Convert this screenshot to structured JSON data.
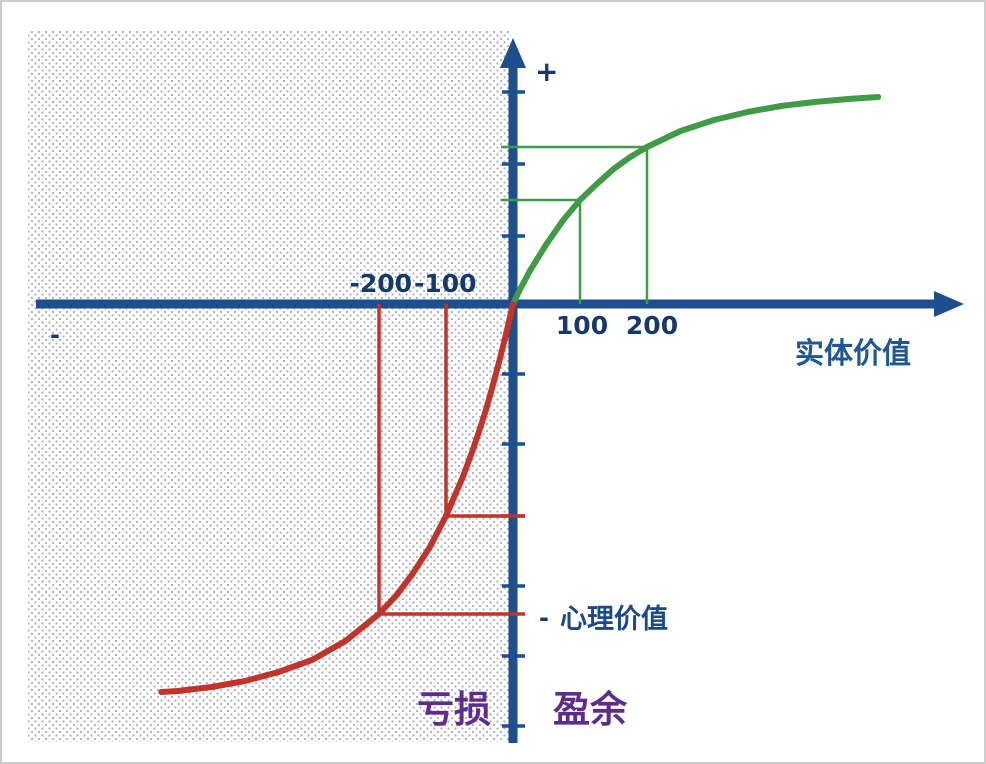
{
  "figure": {
    "plus_sign": "+",
    "minus_sign_left": "-",
    "y_axis_minus": "-",
    "x_axis_label": "实体价值",
    "y_axis_label": "心理价值",
    "loss_label": "亏损",
    "gain_label": "盈余"
  },
  "tick_labels": {
    "neg200": "-200",
    "neg100": "-100",
    "pos100": "100",
    "pos200": "200"
  },
  "colors": {
    "axis": "#1d4e8f",
    "tick_text": "#15386e",
    "gains": "#3f9b45",
    "losses": "#c2342a",
    "quadrant_text": "#5e2b8f",
    "x_label_text": "#1d5796",
    "dots": "#a9aeb7"
  },
  "chart_data": {
    "type": "line",
    "title": "",
    "xlabel": "实体价值",
    "ylabel": "心理价值",
    "x_tick_labels": [
      -200,
      -100,
      100,
      200
    ],
    "y_units": "arbitrary (axis unlabeled)",
    "quadrant_labels": {
      "losses": "亏损",
      "gains": "盈余"
    },
    "legend": "none",
    "grid": false,
    "series": [
      {
        "name": "gains-curve",
        "color": "#3f9b45",
        "points": [
          [
            0,
            0
          ],
          [
            10,
            14
          ],
          [
            25,
            33
          ],
          [
            50,
            60
          ],
          [
            75,
            84
          ],
          [
            100,
            104
          ],
          [
            125,
            120
          ],
          [
            150,
            135
          ],
          [
            175,
            147
          ],
          [
            200,
            157
          ],
          [
            250,
            173
          ],
          [
            300,
            184
          ],
          [
            350,
            192
          ],
          [
            400,
            198
          ],
          [
            450,
            202
          ],
          [
            500,
            205
          ],
          [
            545,
            207
          ]
        ]
      },
      {
        "name": "losses-curve",
        "color": "#c2342a",
        "points": [
          [
            0,
            0
          ],
          [
            -10,
            -29
          ],
          [
            -20,
            -56
          ],
          [
            -30,
            -81
          ],
          [
            -40,
            -105
          ],
          [
            -50,
            -126
          ],
          [
            -60,
            -146
          ],
          [
            -75,
            -173
          ],
          [
            -100,
            -212
          ],
          [
            -125,
            -244
          ],
          [
            -150,
            -270
          ],
          [
            -175,
            -292
          ],
          [
            -200,
            -310
          ],
          [
            -250,
            -337
          ],
          [
            -300,
            -356
          ],
          [
            -350,
            -368
          ],
          [
            -400,
            -377
          ],
          [
            -450,
            -383
          ],
          [
            -500,
            -387
          ],
          [
            -525,
            -388
          ]
        ]
      }
    ],
    "reference_lines": {
      "gains_x": [
        100,
        200
      ],
      "losses_x": [
        -100,
        -200
      ]
    },
    "y_ticks": [
      212,
      140,
      68,
      -70,
      -140,
      -212,
      -282,
      -352,
      -422
    ]
  }
}
